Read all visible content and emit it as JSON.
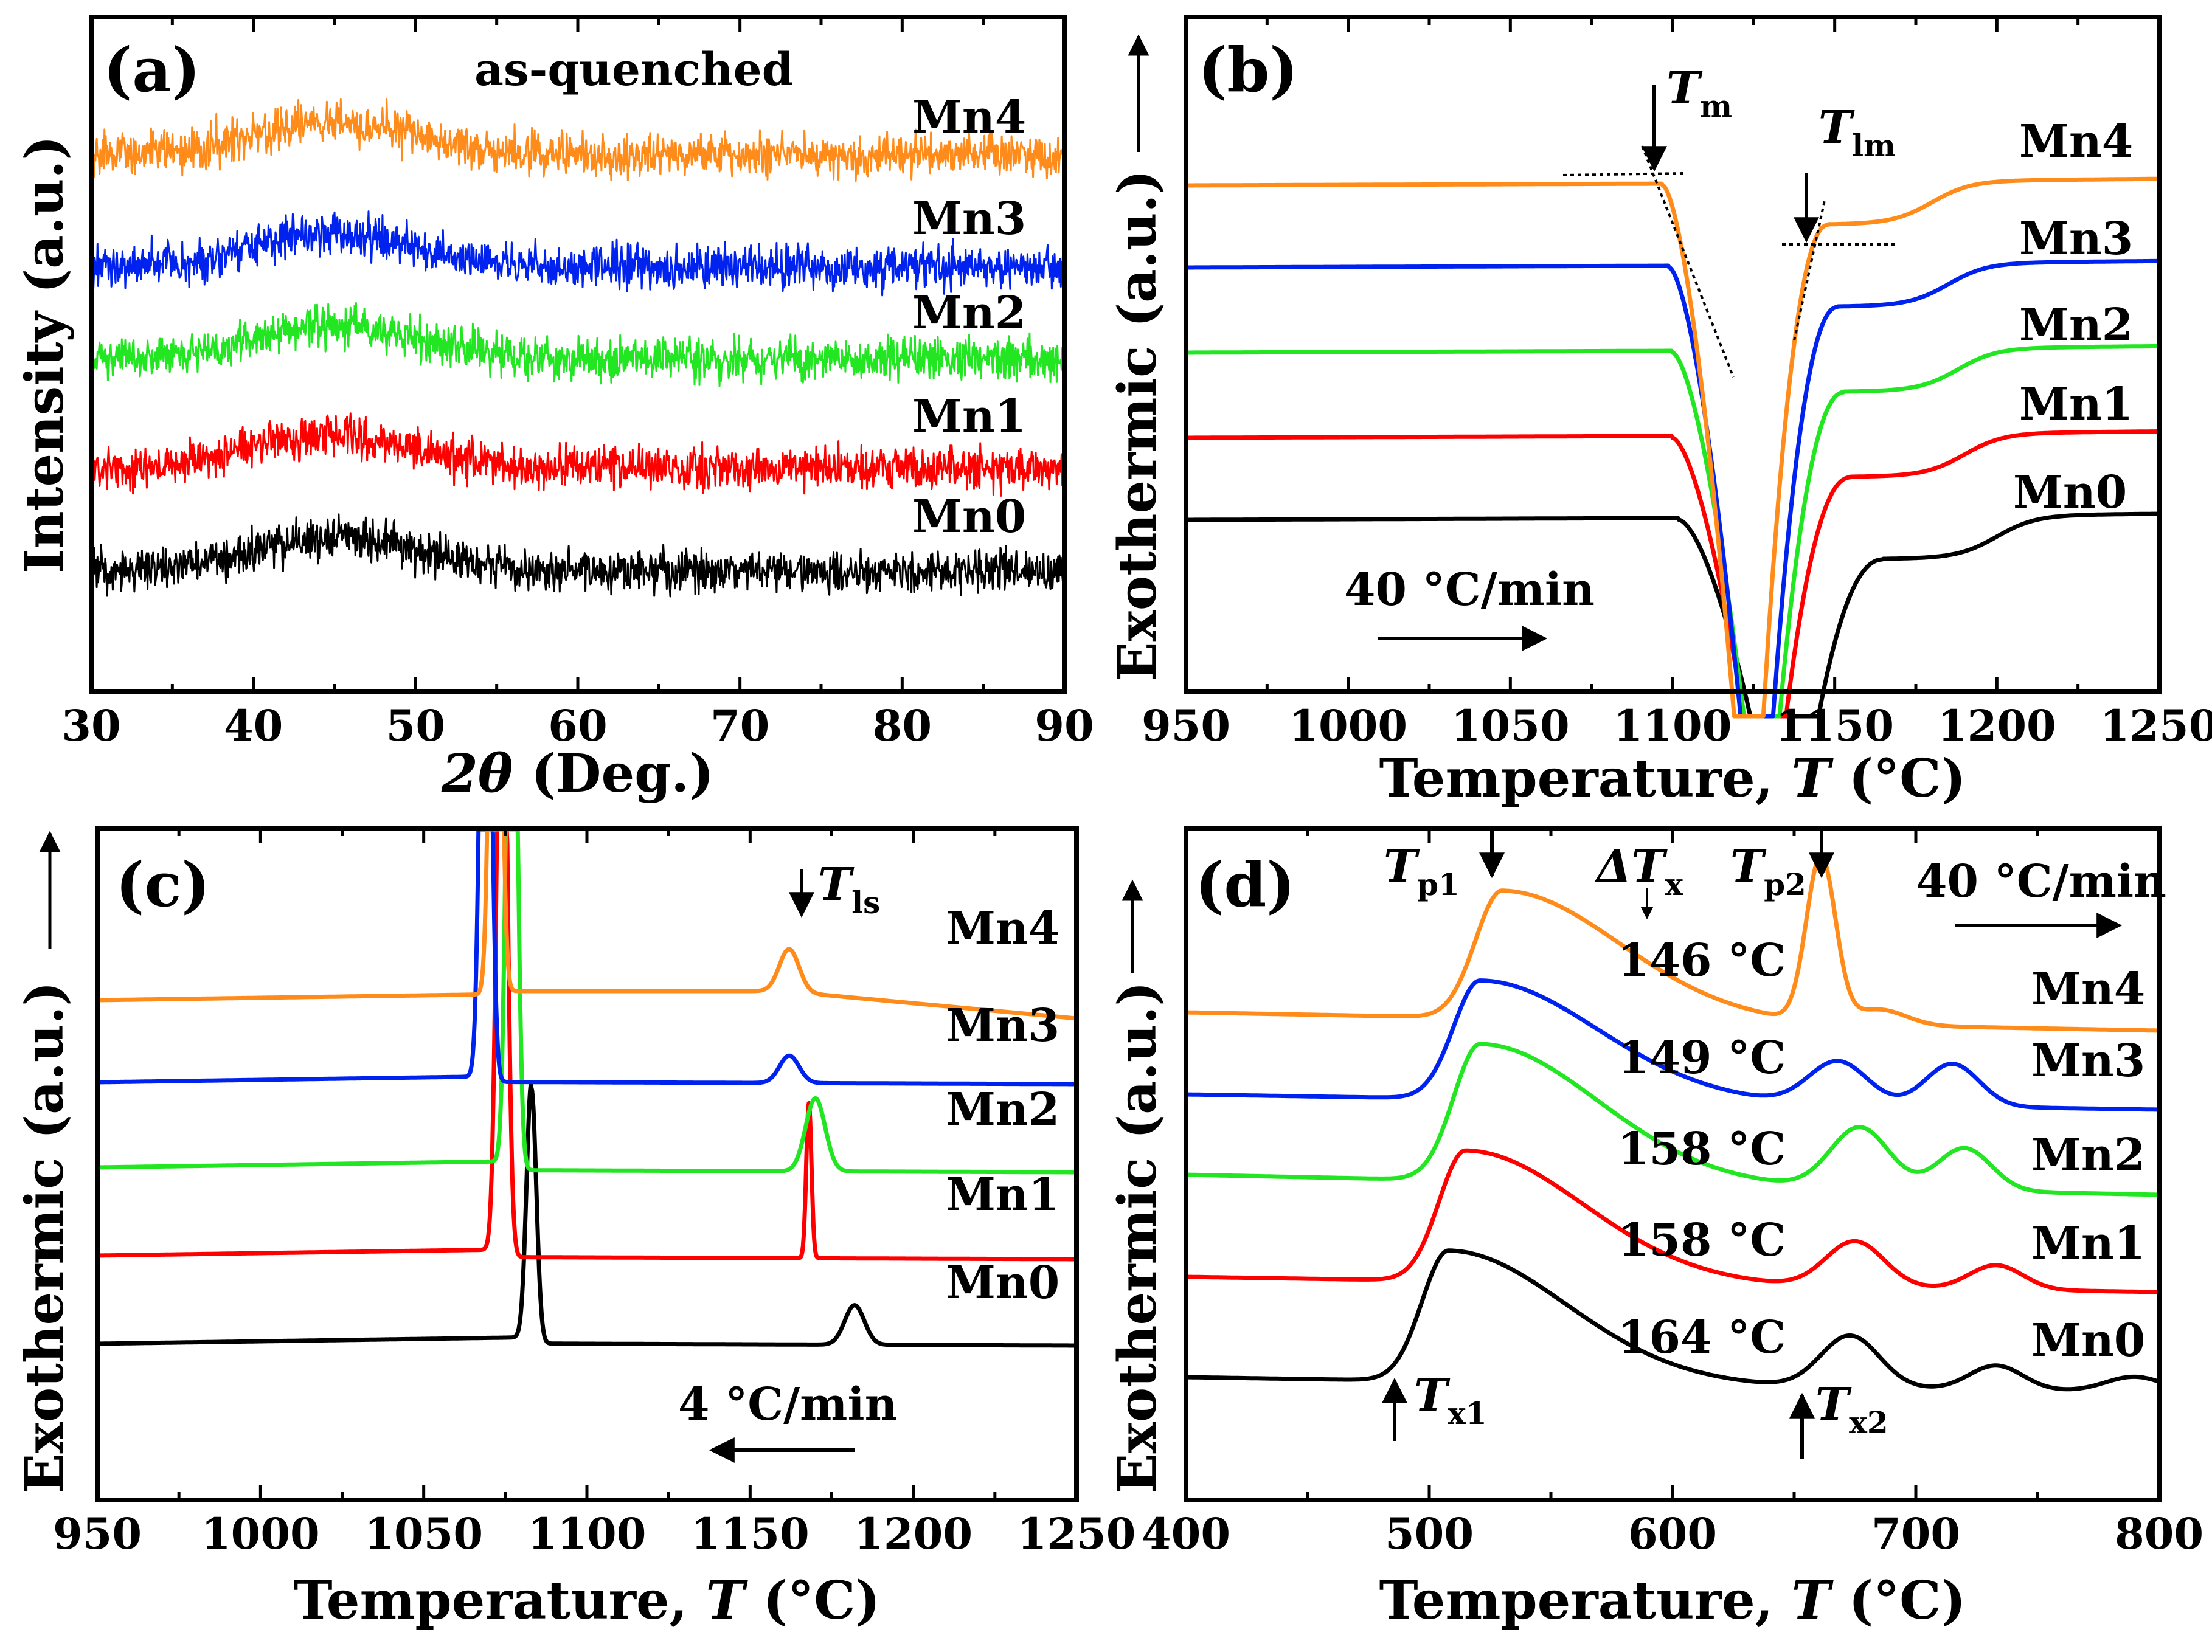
{
  "figure_panels": [
    "a",
    "b",
    "c",
    "d"
  ],
  "colors": {
    "Mn0": "#000000",
    "Mn1": "#ff0000",
    "Mn2": "#22e622",
    "Mn3": "#0022ee",
    "Mn4": "#ff8c1a"
  },
  "chart_data": [
    {
      "panel": "a",
      "type": "line",
      "panel_label": "(a)",
      "title": "as-quenched",
      "xlabel_sym": "2θ",
      "xlabel_unit": " (Deg.)",
      "ylabel": "Intensity (a.u.)",
      "xlim": [
        30,
        90
      ],
      "xticks": [
        30,
        40,
        50,
        60,
        70,
        80,
        90
      ],
      "yticks": false,
      "series": [
        {
          "name": "Mn0",
          "offset": 0.0,
          "amorphous_halo_center_deg": 45
        },
        {
          "name": "Mn1",
          "offset": 1.0,
          "amorphous_halo_center_deg": 45
        },
        {
          "name": "Mn2",
          "offset": 2.0,
          "amorphous_halo_center_deg": 45
        },
        {
          "name": "Mn3",
          "offset": 3.0,
          "amorphous_halo_center_deg": 45
        },
        {
          "name": "Mn4",
          "offset": 4.0,
          "amorphous_halo_center_deg": 45
        }
      ]
    },
    {
      "panel": "b",
      "type": "line",
      "panel_label": "(b)",
      "xlabel": "Temperature, ",
      "xlabel_sym": "T",
      "xlabel_unit": " (°C)",
      "ylabel": "Exothermic (a.u.)",
      "xlim": [
        950,
        1250
      ],
      "xticks": [
        950,
        1000,
        1050,
        1100,
        1150,
        1200,
        1250
      ],
      "rate_label": "40 °C/min",
      "annotations": {
        "Tm": "T",
        "Tm_sub": "m",
        "Tlm": "T",
        "Tlm_sub": "lm"
      },
      "series": [
        {
          "name": "Mn0",
          "onset_C": 1102,
          "recovery_C": 1150,
          "shoulder_C": 1200
        },
        {
          "name": "Mn1",
          "onset_C": 1100,
          "recovery_C": 1140,
          "shoulder_C": 1190
        },
        {
          "name": "Mn2",
          "onset_C": 1100,
          "recovery_C": 1138,
          "shoulder_C": 1188
        },
        {
          "name": "Mn3",
          "onset_C": 1099,
          "recovery_C": 1136,
          "shoulder_C": 1185
        },
        {
          "name": "Mn4",
          "onset_C": 1097,
          "recovery_C": 1133,
          "shoulder_C": 1180
        }
      ]
    },
    {
      "panel": "c",
      "type": "line",
      "panel_label": "(c)",
      "xlabel": "Temperature, ",
      "xlabel_sym": "T",
      "xlabel_unit": " (°C)",
      "ylabel": "Exothermic (a.u.)",
      "xlim": [
        950,
        1250
      ],
      "xticks": [
        950,
        1000,
        1050,
        1100,
        1150,
        1200,
        1250
      ],
      "rate_label": "4 °C/min",
      "annotations": {
        "Tls": "T",
        "Tls_sub": "ls"
      },
      "series": [
        {
          "name": "Mn0",
          "main_peak_C": 1083,
          "second_peak_C": 1182
        },
        {
          "name": "Mn1",
          "main_peak_C": 1074,
          "second_peak_C": 1168
        },
        {
          "name": "Mn2",
          "main_peak_C": 1077,
          "second_peak_C": 1170
        },
        {
          "name": "Mn3",
          "main_peak_C": 1069,
          "second_peak_C": 1162
        },
        {
          "name": "Mn4",
          "main_peak_C": 1072,
          "second_peak_C": 1162
        }
      ]
    },
    {
      "panel": "d",
      "type": "line",
      "panel_label": "(d)",
      "xlabel": "Temperature, ",
      "xlabel_sym": "T",
      "xlabel_unit": " (°C)",
      "ylabel": "Exothermic (a.u.)",
      "xlim": [
        400,
        800
      ],
      "xticks": [
        400,
        500,
        600,
        700,
        800
      ],
      "rate_label": "40 °C/min",
      "annotations": {
        "Tp1": "T",
        "Tp1_sub": "p1",
        "Tp2": "T",
        "Tp2_sub": "p2",
        "dTx": "ΔT",
        "dTx_sub": "x",
        "Tx1": "T",
        "Tx1_sub": "x1",
        "Tx2": "T",
        "Tx2_sub": "x2"
      },
      "series": [
        {
          "name": "Mn0",
          "Tx1_C": 490,
          "peak1_C": 508,
          "peak2_C": 673,
          "peak3_C": 733,
          "delta_Tx": "164 °C"
        },
        {
          "name": "Mn1",
          "Tx1_C": 495,
          "peak1_C": 515,
          "peak2_C": 675,
          "peak3_C": 733,
          "delta_Tx": "158 °C"
        },
        {
          "name": "Mn2",
          "Tx1_C": 500,
          "peak1_C": 521,
          "peak2_C": 677,
          "peak3_C": 720,
          "delta_Tx": "158 °C"
        },
        {
          "name": "Mn3",
          "Tx1_C": 500,
          "peak1_C": 521,
          "peak2_C": 668,
          "peak3_C": 715,
          "delta_Tx": "149 °C"
        },
        {
          "name": "Mn4",
          "Tx1_C": 510,
          "peak1_C": 530,
          "peak2_C": 661,
          "peak3_C": 685,
          "delta_Tx": "146 °C"
        }
      ]
    }
  ]
}
